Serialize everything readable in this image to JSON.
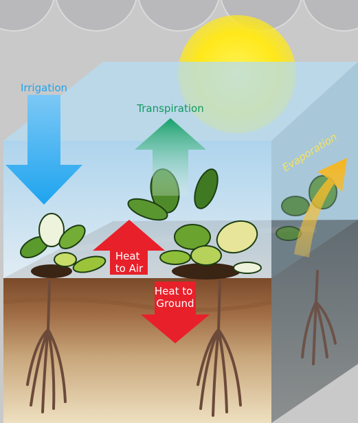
{
  "labels": {
    "irrigation": "Irrigation",
    "transpiration": "Transpiration",
    "evaporation": "Evaporation",
    "heat_to_air": [
      "Heat",
      "to Air"
    ],
    "heat_to_ground": [
      "Heat to",
      "Ground"
    ]
  }
}
